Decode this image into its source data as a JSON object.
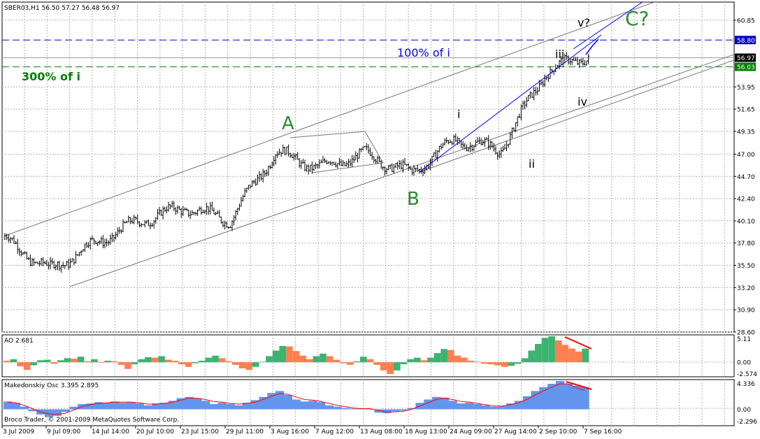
{
  "main_chart": {
    "header": "SBER03,H1  56.50 57.27 56.48 56.97",
    "price_axis": [
      "60.85",
      "58.80",
      "56.97",
      "56.03",
      "53.95",
      "51.65",
      "49.35",
      "47.00",
      "44.70",
      "42.40",
      "40.10",
      "37.80",
      "35.50",
      "33.20",
      "30.90",
      "28.60"
    ],
    "marker_colors": {
      "58.80": "#0000cc",
      "56.97": "#000000",
      "56.03": "#008000"
    },
    "wave_labels": [
      {
        "text": "A",
        "color": "#2e8b2e"
      },
      {
        "text": "B",
        "color": "#2e8b2e"
      },
      {
        "text": "C?",
        "color": "#2e8b2e"
      },
      {
        "text": "i",
        "color": "#000000"
      },
      {
        "text": "ii",
        "color": "#000000"
      },
      {
        "text": "iii",
        "color": "#000000"
      },
      {
        "text": "iv",
        "color": "#000000"
      },
      {
        "text": "v?",
        "color": "#000000"
      }
    ],
    "fib_labels": [
      {
        "text": "100% of i",
        "color": "#0000ff"
      },
      {
        "text": "300% of i",
        "color": "#008000"
      }
    ],
    "horizontal_levels": [
      {
        "value": 58.8,
        "color": "#0000cc",
        "style": "dashed"
      },
      {
        "value": 56.97,
        "color": "#999999",
        "style": "solid"
      },
      {
        "value": 56.03,
        "color": "#008000",
        "style": "dashed"
      }
    ]
  },
  "ao_panel": {
    "header": "AO 2.681",
    "axis": [
      "5.11",
      "0.00",
      "-2.574"
    ],
    "up_color": "#3cb371",
    "down_color": "#ff7f50"
  },
  "mak_panel": {
    "header": "Makedonskiy Osc 3.395 2.895",
    "axis": [
      "4.336",
      "0.00",
      "-2.296"
    ],
    "hist_color": "#6495ed",
    "signal_color": "#ff0000"
  },
  "copyright": "Broco Trader, © 2001-2009 MetaQuotes Software Corp.",
  "time_axis": [
    "3 Jul 2009",
    "9 Jul 09:00",
    "14 Jul 14:00",
    "20 Jul 10:00",
    "23 Jul 15:00",
    "29 Jul 11:00",
    "3 Aug 16:00",
    "7 Aug 12:00",
    "13 Aug 08:00",
    "18 Aug 13:00",
    "24 Aug 09:00",
    "27 Aug 14:00",
    "2 Sep 10:00",
    "7 Sep 16:00"
  ],
  "chart_data": {
    "type": "line",
    "title": "SBER03,H1",
    "ylim": [
      28.6,
      62.0
    ],
    "grid": true,
    "series": [
      {
        "name": "SBER03,H1",
        "x": [
          "3 Jul 2009",
          "9 Jul 09:00",
          "14 Jul 14:00",
          "20 Jul 10:00",
          "23 Jul 15:00",
          "29 Jul 11:00",
          "3 Aug 16:00",
          "7 Aug 12:00",
          "13 Aug 08:00",
          "18 Aug 13:00",
          "24 Aug 09:00",
          "27 Aug 14:00",
          "2 Sep 10:00",
          "7 Sep 16:00"
        ],
        "values": [
          38.2,
          35.0,
          37.8,
          40.1,
          41.5,
          40.2,
          47.2,
          45.6,
          47.0,
          45.0,
          48.5,
          47.4,
          55.5,
          57.3
        ]
      }
    ],
    "ao_series": [
      {
        "name": "AO",
        "values": [
          0.3,
          0.6,
          -0.8,
          -1.5,
          -0.6,
          0.4,
          0.5,
          -0.3,
          0.4,
          0.8,
          0.7,
          1.1,
          0.2,
          0.6,
          -0.1,
          0.3,
          0.2,
          -0.5,
          -1.3,
          -0.4,
          0.6,
          1.0,
          0.9,
          1.2,
          0.5,
          0.3,
          -0.4,
          -0.9,
          -0.2,
          0.3,
          0.9,
          1.3,
          0.8,
          0.2,
          -0.5,
          -1.2,
          -1.5,
          -0.9,
          0.1,
          1.2,
          2.3,
          3.2,
          3.1,
          2.2,
          1.3,
          0.6,
          1.2,
          1.7,
          1.2,
          0.5,
          -0.2,
          -0.5,
          0.2,
          1.1,
          0.6,
          -0.5,
          -1.6,
          -2.3,
          -1.6,
          -0.4,
          0.6,
          0.9,
          0.4,
          0.9,
          1.8,
          2.6,
          2.4,
          1.3,
          0.9,
          0.3,
          0.1,
          -0.3,
          -0.4,
          -0.6,
          -0.9,
          -0.7,
          -0.3,
          0.8,
          2.3,
          3.6,
          4.8,
          5.1,
          4.3,
          3.4,
          2.7,
          2.1,
          2.681
        ]
      }
    ],
    "mak_series": [
      {
        "name": "Makedonskiy Osc",
        "values": [
          1.2,
          1.0,
          0.4,
          -0.3,
          -0.8,
          -1.2,
          -1.0,
          -0.4,
          0.4,
          0.8,
          0.9,
          1.1,
          1.0,
          1.2,
          1.0,
          1.1,
          0.9,
          0.6,
          0.9,
          1.0,
          1.3,
          1.7,
          1.9,
          1.7,
          1.3,
          0.8,
          1.0,
          0.8,
          0.6,
          1.0,
          1.4,
          1.9,
          2.5,
          2.8,
          2.2,
          1.5,
          1.2,
          1.3,
          1.1,
          0.6,
          0.4,
          0.2,
          0.1,
          0.1,
          0.0,
          -0.5,
          -0.6,
          -0.3,
          -0.2,
          0.2,
          1.0,
          1.5,
          1.9,
          1.8,
          1.3,
          0.9,
          1.0,
          0.8,
          0.6,
          0.4,
          0.5,
          0.9,
          1.3,
          2.0,
          2.8,
          3.4,
          3.9,
          4.336,
          3.9,
          3.6,
          3.395
        ],
        "signal": [
          1.1,
          1.0,
          0.6,
          0.1,
          -0.4,
          -0.7,
          -0.8,
          -0.6,
          -0.1,
          0.4,
          0.7,
          0.9,
          1.0,
          1.1,
          1.1,
          1.1,
          1.0,
          0.8,
          0.8,
          0.9,
          1.1,
          1.4,
          1.7,
          1.7,
          1.5,
          1.2,
          1.1,
          0.9,
          0.8,
          0.9,
          1.1,
          1.5,
          2.0,
          2.4,
          2.3,
          1.9,
          1.5,
          1.4,
          1.2,
          0.9,
          0.6,
          0.4,
          0.2,
          0.1,
          0.1,
          -0.2,
          -0.4,
          -0.4,
          -0.3,
          0.0,
          0.5,
          1.0,
          1.5,
          1.7,
          1.5,
          1.2,
          1.1,
          0.9,
          0.7,
          0.5,
          0.5,
          0.7,
          1.0,
          1.5,
          2.2,
          2.8,
          3.4,
          3.9,
          3.9,
          3.3,
          2.895
        ]
      }
    ]
  }
}
